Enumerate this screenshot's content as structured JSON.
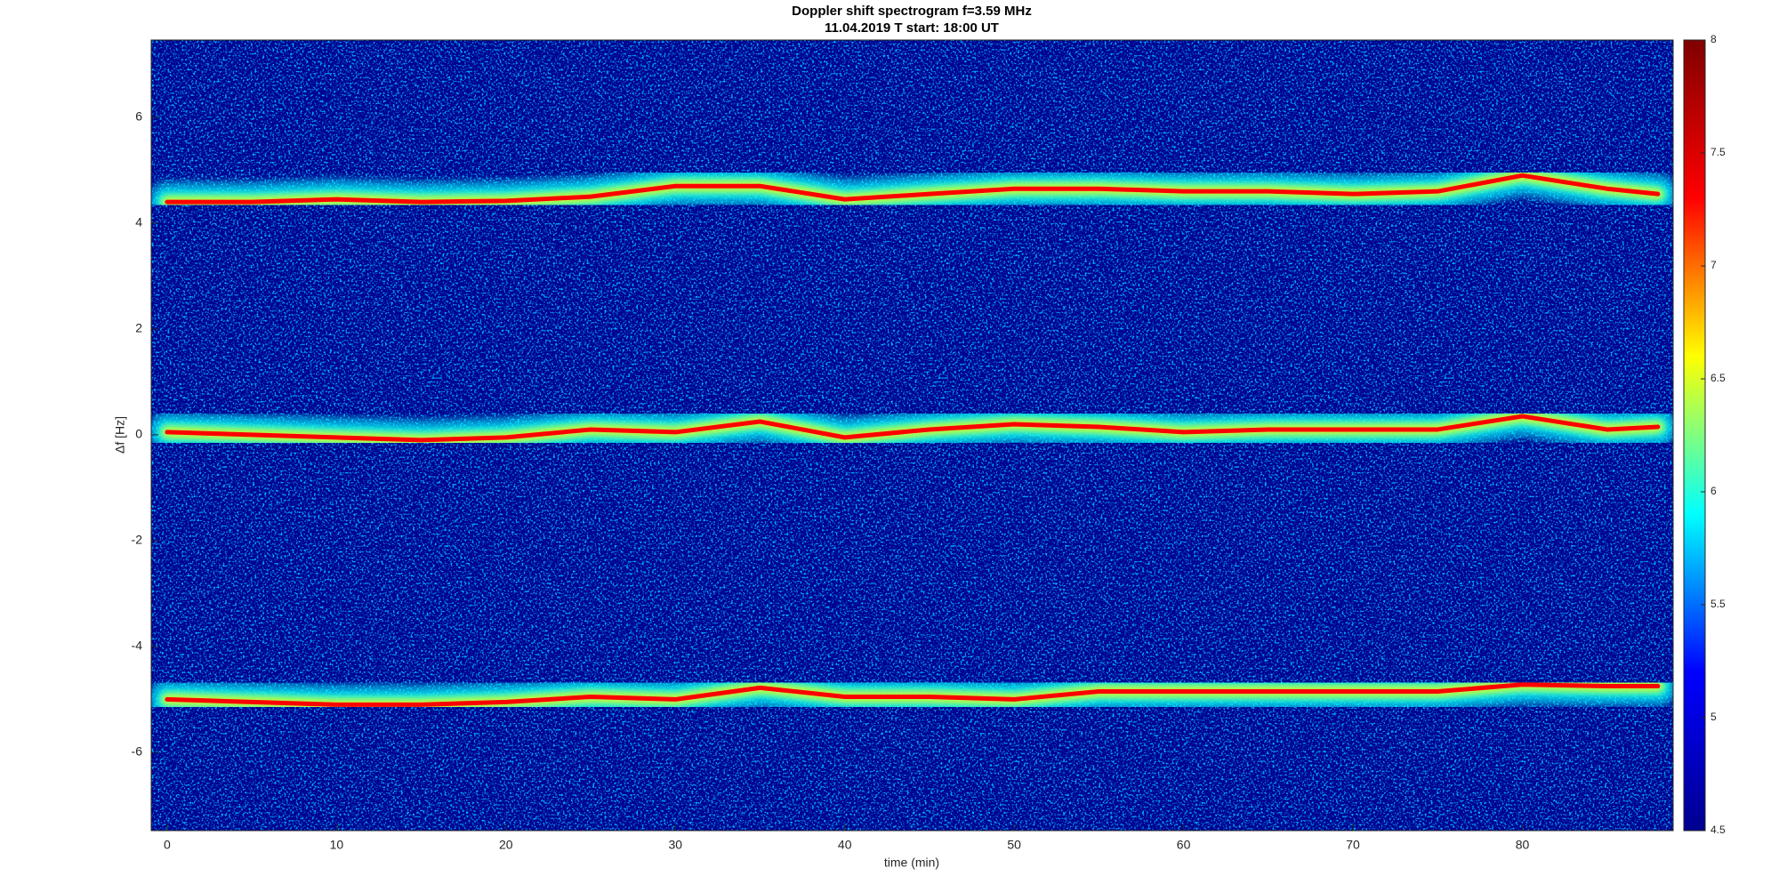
{
  "chart_data": {
    "type": "spectrogram",
    "title": "Doppler shift spectrogram f=3.59 MHz",
    "subtitle": "11.04.2019   T start: 18:00 UT",
    "x_label": "time (min)",
    "y_label": "Δf [Hz]",
    "xlim": [
      -0.94,
      88.9
    ],
    "ylim": [
      -7.48,
      7.46
    ],
    "xticks": [
      0,
      10,
      20,
      30,
      40,
      50,
      60,
      70,
      80
    ],
    "yticks": [
      -6,
      -4,
      -2,
      0,
      2,
      4,
      6
    ],
    "colorbar_lim": [
      4.5,
      8
    ],
    "colorbar_ticks": [
      4.5,
      5,
      5.5,
      6,
      6.5,
      7,
      7.5,
      8
    ],
    "colormap": [
      "#00008f",
      "#0000ff",
      "#00ffff",
      "#ffff00",
      "#ff0000",
      "#800000"
    ],
    "x": [
      0,
      5,
      10,
      15,
      20,
      25,
      30,
      35,
      40,
      45,
      50,
      55,
      60,
      65,
      70,
      75,
      80,
      85,
      88
    ],
    "series": [
      {
        "values": [
          4.4,
          4.4,
          4.45,
          4.4,
          4.42,
          4.5,
          4.7,
          4.7,
          4.45,
          4.55,
          4.65,
          4.65,
          4.6,
          4.6,
          4.55,
          4.6,
          4.9,
          4.65,
          4.55
        ]
      },
      {
        "values": [
          0.05,
          0,
          -0.05,
          -0.1,
          -0.05,
          0.1,
          0.05,
          0.25,
          -0.05,
          0.1,
          0.2,
          0.15,
          0.05,
          0.1,
          0.1,
          0.1,
          0.35,
          0.1,
          0.15
        ]
      },
      {
        "values": [
          -5.0,
          -5.05,
          -5.1,
          -5.1,
          -5.05,
          -4.95,
          -5.0,
          -4.78,
          -4.95,
          -4.95,
          -5.0,
          -4.85,
          -4.85,
          -4.85,
          -4.85,
          -4.85,
          -4.72,
          -4.75,
          -4.75
        ]
      }
    ]
  }
}
